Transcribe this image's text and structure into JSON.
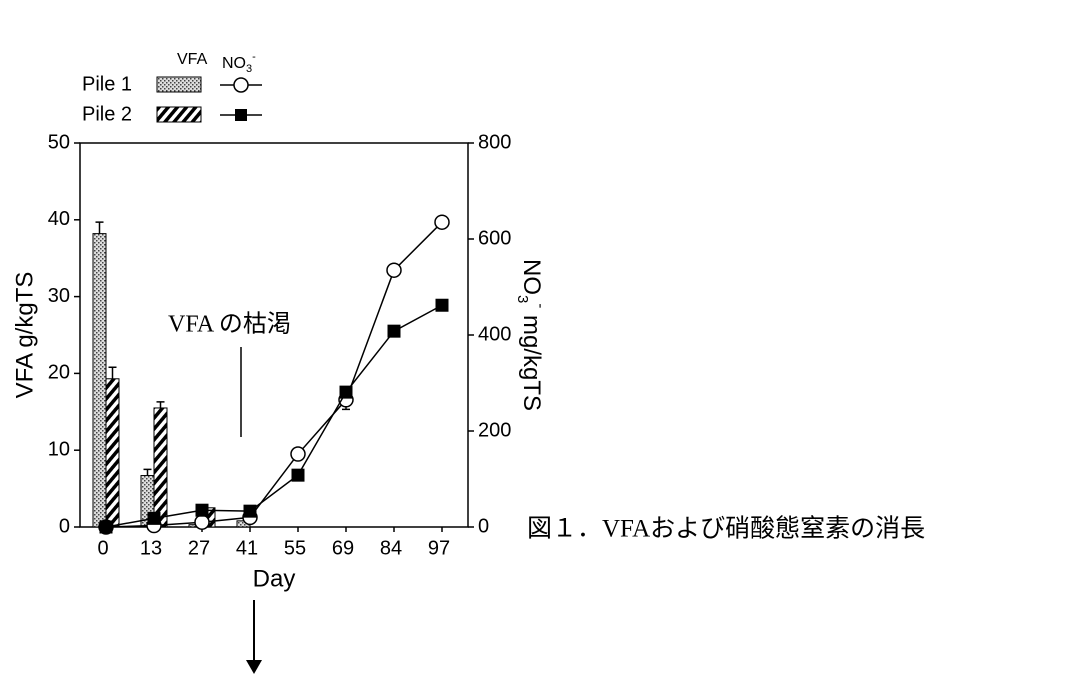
{
  "chart_data": {
    "type": "bar-line",
    "categories": [
      "0",
      "13",
      "27",
      "41",
      "55",
      "69",
      "84",
      "97"
    ],
    "xlabel": "Day",
    "ylabel": "VFA g/kgTS",
    "y2label": {
      "base": "NO",
      "sub": "3",
      "sup": "-",
      "rest": " mg/kgTS"
    },
    "ylim": [
      0,
      50
    ],
    "yticks": [
      0,
      10,
      20,
      30,
      40,
      50
    ],
    "y2lim": [
      0,
      800
    ],
    "y2ticks": [
      0,
      200,
      400,
      600,
      800
    ],
    "piles": [
      "Pile 1",
      "Pile 2"
    ],
    "vfa": {
      "label": "VFA",
      "series": [
        {
          "pattern": "dots",
          "values": [
            38.2,
            6.7,
            0.3,
            0.8,
            null,
            null,
            null,
            null
          ],
          "errors": [
            1.5,
            0.8,
            null,
            null,
            null,
            null,
            null,
            null
          ]
        },
        {
          "pattern": "hatch",
          "values": [
            19.3,
            15.5,
            2.5,
            null,
            null,
            null,
            null,
            null
          ],
          "errors": [
            1.5,
            0.8,
            null,
            null,
            null,
            null,
            null,
            null
          ]
        }
      ]
    },
    "no3": {
      "label": {
        "base": "NO",
        "sub": "3",
        "sup": "-"
      },
      "series": [
        {
          "marker": "circle",
          "axis": "y2",
          "values": [
            0,
            3,
            10,
            20,
            152,
            265,
            535,
            635
          ],
          "errors": [
            null,
            null,
            null,
            null,
            null,
            20,
            null,
            null
          ]
        },
        {
          "marker": "square",
          "axis": "y2",
          "values": [
            0,
            18,
            35,
            33,
            108,
            281,
            408,
            462
          ],
          "errors": [
            null,
            null,
            null,
            null,
            null,
            10,
            null,
            null
          ]
        }
      ]
    },
    "annotation": "VFA の枯渇",
    "caption": "図１．VFAおよび硝酸態窒素の消長"
  }
}
